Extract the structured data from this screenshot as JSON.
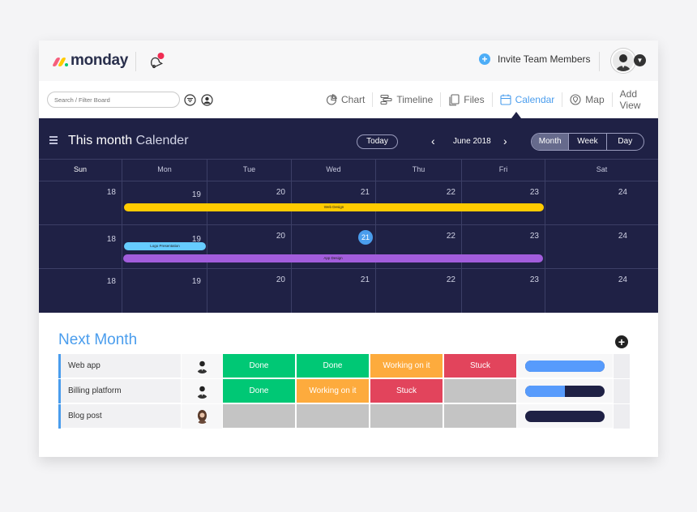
{
  "header": {
    "logo_text": "monday",
    "invite_label": "Invite Team Members"
  },
  "toolbar": {
    "search_placeholder": "Search / Filter Board",
    "views": [
      {
        "label": "Chart",
        "icon": "chart-icon",
        "active": false
      },
      {
        "label": "Timeline",
        "icon": "timeline-icon",
        "active": false
      },
      {
        "label": "Files",
        "icon": "files-icon",
        "active": false
      },
      {
        "label": "Calendar",
        "icon": "calendar-icon",
        "active": true
      },
      {
        "label": "Map",
        "icon": "map-pin-icon",
        "active": false
      },
      {
        "label": "Add View",
        "icon": "",
        "active": false
      }
    ]
  },
  "calendar": {
    "title_bold": "This month",
    "title_rest": "Calender",
    "today_label": "Today",
    "month_label": "June 2018",
    "view_modes": [
      "Month",
      "Week",
      "Day"
    ],
    "selected_mode": "Month",
    "weekdays": [
      "Sun",
      "Mon",
      "Tue",
      "Wed",
      "Thu",
      "Fri",
      "Sat"
    ],
    "weeks": [
      [
        "18",
        "19",
        "20",
        "21",
        "22",
        "23",
        "24"
      ],
      [
        "18",
        "19",
        "20",
        "21",
        "22",
        "23",
        "24"
      ],
      [
        "18",
        "19",
        "20",
        "21",
        "22",
        "23",
        "24"
      ]
    ],
    "highlighted_day": "21",
    "events": [
      {
        "label": "Web Design",
        "color": "#ffcb00"
      },
      {
        "label": "Logo Presentation",
        "color": "#66ccff"
      },
      {
        "label": "App Design",
        "color": "#a25ddc"
      }
    ]
  },
  "board": {
    "title": "Next Month",
    "rows": [
      {
        "name": "Web app",
        "statuses": [
          {
            "label": "Done",
            "color": "#00c875"
          },
          {
            "label": "Done",
            "color": "#00c875"
          },
          {
            "label": "Working on it",
            "color": "#fdab3d"
          },
          {
            "label": "Stuck",
            "color": "#e2445c"
          }
        ],
        "progress": 1.0
      },
      {
        "name": "Billing platform",
        "statuses": [
          {
            "label": "Done",
            "color": "#00c875"
          },
          {
            "label": "Working on it",
            "color": "#fdab3d"
          },
          {
            "label": "Stuck",
            "color": "#e2445c"
          },
          {
            "label": "",
            "color": "#c4c4c4"
          }
        ],
        "progress": 0.5
      },
      {
        "name": "Blog post",
        "statuses": [
          {
            "label": "",
            "color": "#c4c4c4"
          },
          {
            "label": "",
            "color": "#c4c4c4"
          },
          {
            "label": "",
            "color": "#c4c4c4"
          },
          {
            "label": "",
            "color": "#c4c4c4"
          }
        ],
        "progress": 0.0
      }
    ]
  },
  "colors": {
    "accent": "#4a9ded",
    "calendar_bg": "#1f2145"
  }
}
